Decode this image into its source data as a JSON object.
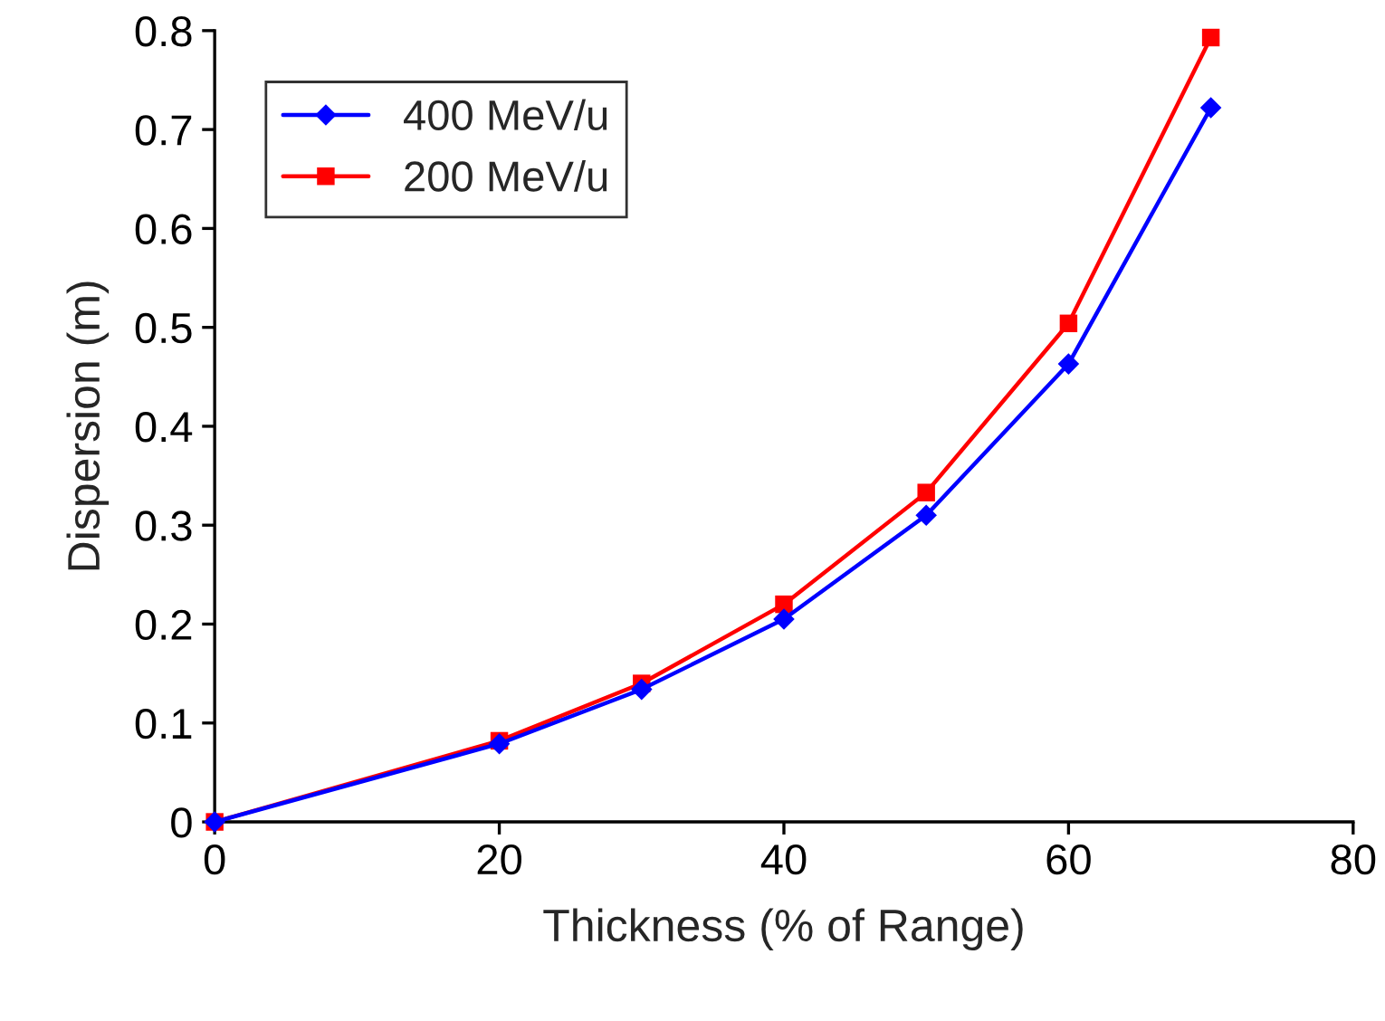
{
  "chart_data": {
    "type": "line",
    "xlabel": "Thickness (% of Range)",
    "ylabel": "Dispersion (m)",
    "x": [
      0,
      20,
      30,
      40,
      50,
      60,
      70
    ],
    "series": [
      {
        "name": "400 MeV/u",
        "color": "#0000ff",
        "marker": "diamond",
        "values": [
          0,
          0.079,
          0.134,
          0.205,
          0.31,
          0.463,
          0.722
        ]
      },
      {
        "name": "200 MeV/u",
        "color": "#ff0000",
        "marker": "square",
        "values": [
          0,
          0.082,
          0.14,
          0.22,
          0.333,
          0.504,
          0.793
        ]
      }
    ],
    "xlim": [
      0,
      80
    ],
    "xticks": [
      0,
      20,
      40,
      60,
      80
    ],
    "ylim": [
      0,
      0.8
    ],
    "yticks": [
      0,
      0.1,
      0.2,
      0.3,
      0.4,
      0.5,
      0.6,
      0.7,
      0.8
    ],
    "grid": false,
    "legend": "top left",
    "line_style": "solid"
  }
}
